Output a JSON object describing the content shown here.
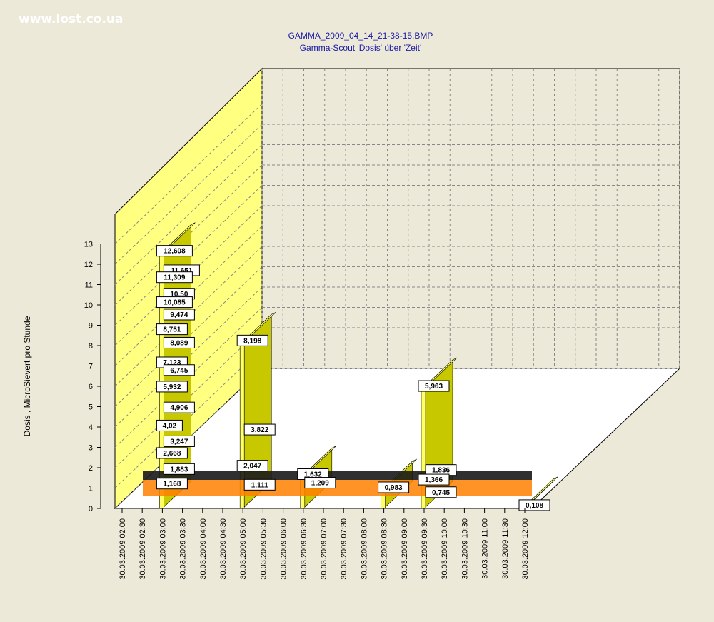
{
  "watermark": "www.lost.co.ua",
  "chart_data": {
    "type": "bar",
    "title": "GAMMA_2009_04_14_21-38-15.BMP",
    "subtitle": "Gamma-Scout 'Dosis' über 'Zeit'",
    "ylabel": "Dosis , MicroSievert pro Stunde",
    "xlabel": "",
    "ylim": [
      0,
      13
    ],
    "yticks": [
      "0",
      "1",
      "2",
      "3",
      "4",
      "5",
      "6",
      "7",
      "8",
      "9",
      "10",
      "11",
      "12",
      "13"
    ],
    "categories": [
      "30.03.2009 02:00",
      "30.03.2009 02:30",
      "30.03.2009 03:00",
      "30.03.2009 03:30",
      "30.03.2009 04:00",
      "30.03.2009 04:30",
      "30.03.2009 05:00",
      "30.03.2009 05:30",
      "30.03.2009 06:00",
      "30.03.2009 06:30",
      "30.03.2009 07:00",
      "30.03.2009 07:30",
      "30.03.2009 08:00",
      "30.03.2009 08:30",
      "30.03.2009 09:00",
      "30.03.2009 09:30",
      "30.03.2009 10:00",
      "30.03.2009 10:30",
      "30.03.2009 11:00",
      "30.03.2009 11:30",
      "30.03.2009 12:00"
    ],
    "grid": true,
    "view": "3d",
    "colors": {
      "bar": "#FFFF66",
      "bar_side": "#C8C800",
      "back_wall": "#FFFF80",
      "floor": "#FFFFFF",
      "label_border": "#000000",
      "orange": "#FF8000",
      "dark": "#1a1a1a"
    },
    "peaks": [
      {
        "x": "30.03.2009 03:00",
        "value": 12.608,
        "label": "12,608"
      },
      {
        "x": "30.03.2009 03:00",
        "value": 11.651,
        "label": "11,651"
      },
      {
        "x": "30.03.2009 03:00",
        "value": 11.309,
        "label": "11,309"
      },
      {
        "x": "30.03.2009 03:00",
        "value": 10.5,
        "label": "10,50"
      },
      {
        "x": "30.03.2009 03:00",
        "value": 10.085,
        "label": "10,085"
      },
      {
        "x": "30.03.2009 03:00",
        "value": 9.474,
        "label": "9,474"
      },
      {
        "x": "30.03.2009 03:00",
        "value": 8.751,
        "label": "8,751"
      },
      {
        "x": "30.03.2009 03:00",
        "value": 8.089,
        "label": "8,089"
      },
      {
        "x": "30.03.2009 03:00",
        "value": 7.123,
        "label": "7,123"
      },
      {
        "x": "30.03.2009 03:00",
        "value": 6.745,
        "label": "6,745"
      },
      {
        "x": "30.03.2009 03:00",
        "value": 5.932,
        "label": "5,932"
      },
      {
        "x": "30.03.2009 03:00",
        "value": 4.906,
        "label": "4,906"
      },
      {
        "x": "30.03.2009 03:00",
        "value": 4.02,
        "label": "4,02"
      },
      {
        "x": "30.03.2009 03:00",
        "value": 3.247,
        "label": "3,247"
      },
      {
        "x": "30.03.2009 03:00",
        "value": 2.668,
        "label": "2,668"
      },
      {
        "x": "30.03.2009 03:00",
        "value": 1.883,
        "label": "1,883"
      },
      {
        "x": "30.03.2009 03:00",
        "value": 1.168,
        "label": "1,168"
      },
      {
        "x": "30.03.2009 05:00",
        "value": 8.198,
        "label": "8,198"
      },
      {
        "x": "30.03.2009 05:00",
        "value": 3.822,
        "label": "3,822"
      },
      {
        "x": "30.03.2009 05:00",
        "value": 2.047,
        "label": "2,047"
      },
      {
        "x": "30.03.2009 05:00",
        "value": 1.111,
        "label": "1,111"
      },
      {
        "x": "30.03.2009 06:30",
        "value": 1.632,
        "label": "1,632"
      },
      {
        "x": "30.03.2009 06:30",
        "value": 1.209,
        "label": "1,209"
      },
      {
        "x": "30.03.2009 08:30",
        "value": 0.983,
        "label": "0,983"
      },
      {
        "x": "30.03.2009 09:30",
        "value": 5.963,
        "label": "5,963"
      },
      {
        "x": "30.03.2009 09:30",
        "value": 1.836,
        "label": "1,836"
      },
      {
        "x": "30.03.2009 09:30",
        "value": 1.366,
        "label": "1,366"
      },
      {
        "x": "30.03.2009 09:30",
        "value": 0.745,
        "label": "0,745"
      },
      {
        "x": "30.03.2009 12:00",
        "value": 0.108,
        "label": "0,108"
      }
    ]
  }
}
